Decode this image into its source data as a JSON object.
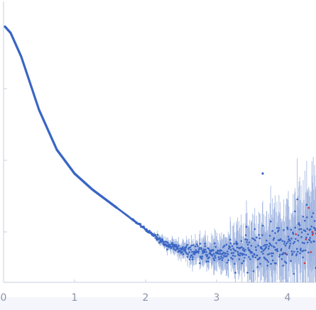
{
  "chart_data": {
    "type": "scatter",
    "title": "",
    "xlabel": "",
    "ylabel": "",
    "xlim": [
      0,
      4.4
    ],
    "ylim": [
      0,
      1
    ],
    "x_ticks": [
      "0",
      "1",
      "2",
      "3",
      "4"
    ],
    "y_ticks": [
      "",
      "",
      "",
      ""
    ],
    "grid": false,
    "legend": "none",
    "series": [
      {
        "color": "#3a66c4",
        "error_bar_color": "#9fb4e0",
        "outlier_color": "#d6333b",
        "curve": {
          "x": [
            0.0,
            0.1,
            0.25,
            0.5,
            0.75,
            1.0,
            1.25,
            1.5,
            1.75,
            2.0,
            2.25,
            2.5,
            2.75,
            3.0,
            3.25,
            3.5,
            3.75,
            4.0,
            4.25,
            4.4
          ],
          "y": [
            0.97,
            0.94,
            0.85,
            0.65,
            0.5,
            0.41,
            0.35,
            0.3,
            0.25,
            0.2,
            0.15,
            0.12,
            0.11,
            0.11,
            0.11,
            0.12,
            0.13,
            0.14,
            0.16,
            0.18
          ]
        },
        "isolated_points": [
          {
            "x": 3.65,
            "y": 0.41
          }
        ]
      }
    ]
  }
}
